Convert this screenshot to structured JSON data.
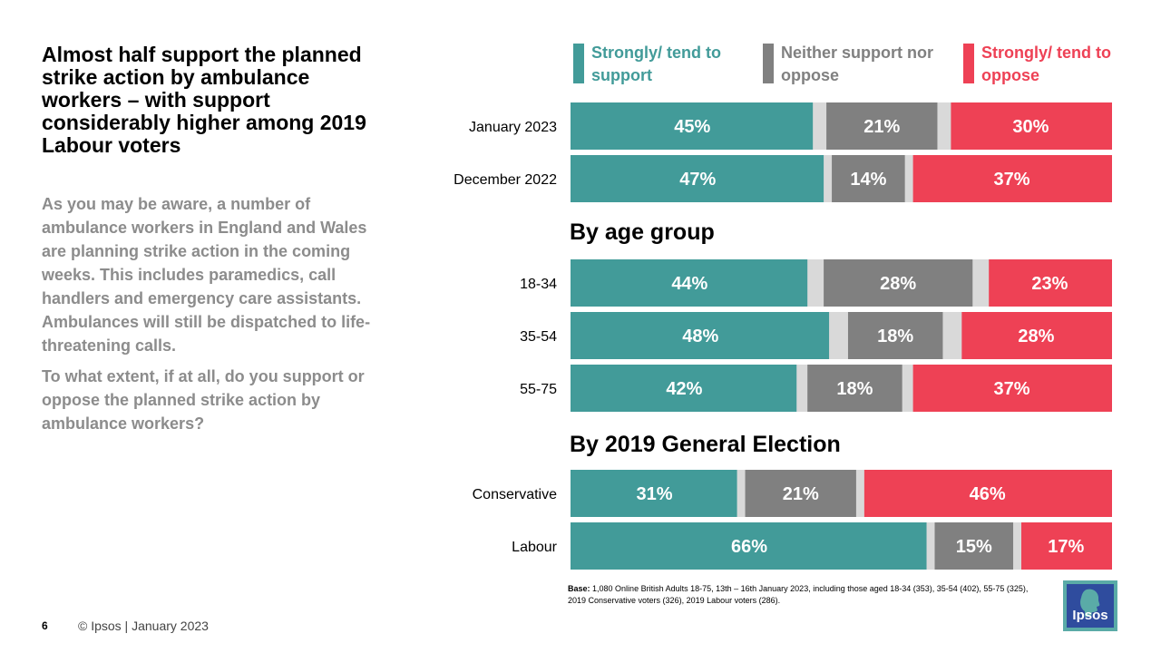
{
  "title": "Almost half support the planned strike action by ambulance workers – with support considerably higher among 2019 Labour voters",
  "question": {
    "context": "As you may be aware, a number of ambulance workers in England and Wales are planning strike action in the coming weeks. This includes paramedics, call handlers and emergency care assistants. Ambulances will still be dispatched to life-threatening calls.",
    "prompt": "To what extent, if at all, do you support or oppose the planned strike action by ambulance workers?"
  },
  "legend": [
    {
      "label": "Strongly/ tend to support",
      "color": "#429b99"
    },
    {
      "label": "Neither support nor oppose",
      "color": "#808080"
    },
    {
      "label": "Strongly/ tend to oppose",
      "color": "#ee4155"
    }
  ],
  "chart_data": {
    "type": "bar",
    "orientation": "horizontal-stacked",
    "categories": [
      "January 2023",
      "December 2022",
      "18-34",
      "35-54",
      "55-75",
      "Conservative",
      "Labour"
    ],
    "groups": [
      {
        "heading": "",
        "categories": [
          "January 2023",
          "December 2022"
        ]
      },
      {
        "heading": "By age group",
        "categories": [
          "18-34",
          "35-54",
          "55-75"
        ]
      },
      {
        "heading": "By 2019 General Election",
        "categories": [
          "Conservative",
          "Labour"
        ]
      }
    ],
    "series": [
      {
        "name": "Strongly/ tend to support",
        "color": "#429b99",
        "values": [
          45,
          47,
          44,
          48,
          42,
          31,
          66
        ]
      },
      {
        "name": "Neither support nor oppose",
        "color": "#808080",
        "values": [
          21,
          14,
          28,
          18,
          18,
          21,
          15
        ]
      },
      {
        "name": "Strongly/ tend to oppose",
        "color": "#ee4155",
        "values": [
          30,
          37,
          23,
          28,
          37,
          46,
          17
        ]
      }
    ],
    "labels": [
      [
        "45%",
        "21%",
        "30%"
      ],
      [
        "47%",
        "14%",
        "37%"
      ],
      [
        "44%",
        "28%",
        "23%"
      ],
      [
        "48%",
        "18%",
        "28%"
      ],
      [
        "42%",
        "18%",
        "37%"
      ],
      [
        "31%",
        "21%",
        "46%"
      ],
      [
        "66%",
        "15%",
        "17%"
      ]
    ],
    "remainder_color": "#d9d9d9",
    "xlim": [
      0,
      100
    ]
  },
  "base_note": {
    "label": "Base:",
    "text": "1,080 Online British Adults 18-75, 13th – 16th January 2023, including those aged 18-34 (353), 35-54 (402), 55-75 (325), 2019 Conservative voters (326), 2019 Labour voters (286)."
  },
  "footer": {
    "page_number": "6",
    "copyright": "© Ipsos | January 2023",
    "logo_text": "Ipsos"
  }
}
